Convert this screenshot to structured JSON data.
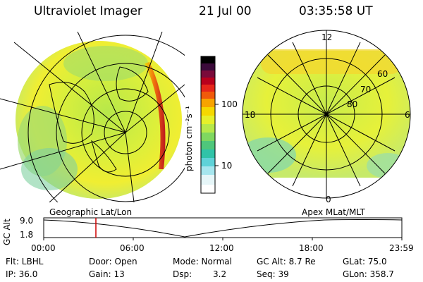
{
  "header": {
    "title": "Ultraviolet Imager",
    "date": "21 Jul 00",
    "time": "03:35:58 UT"
  },
  "colorbar": {
    "unit_label": "photon cm⁻²s⁻¹",
    "ticks": [
      "100",
      "10"
    ],
    "colors": [
      "#000000",
      "#3b0a3a",
      "#7a0b3a",
      "#b8001c",
      "#e6261a",
      "#f05a0a",
      "#f7a300",
      "#f5d800",
      "#e6f02a",
      "#b7e84a",
      "#7fd760",
      "#4fc77b",
      "#30c3a8",
      "#5fd2d8",
      "#a6e6ee",
      "#e6f6f8",
      "#ffffff"
    ]
  },
  "geo_panel": {
    "label": "Geographic Lat/Lon"
  },
  "polar_panel": {
    "label": "Apex MLat/MLT",
    "mlt_labels": [
      "12",
      "18",
      "6",
      "0"
    ],
    "lat_labels": [
      "60",
      "70",
      "80"
    ]
  },
  "timeline": {
    "axis_label": "GC Alt",
    "y_ticks": [
      "9.0",
      "1.8"
    ],
    "x_ticks": [
      "00:00",
      "06:00",
      "12:00",
      "18:00",
      "23:59"
    ],
    "marker_color": "#d00000"
  },
  "info": {
    "flt": "Flt: LBHL",
    "ip": "IP: 36.0",
    "door": "Door: Open",
    "gain": "Gain: 13",
    "mode": "Mode: Normal",
    "dsp_label": "Dsp:",
    "dsp_value": "3.2",
    "gc_alt": "GC Alt: 8.7 Re",
    "seq": "Seq: 39",
    "glat": "GLat: 75.0",
    "glon": "GLon: 358.7"
  }
}
